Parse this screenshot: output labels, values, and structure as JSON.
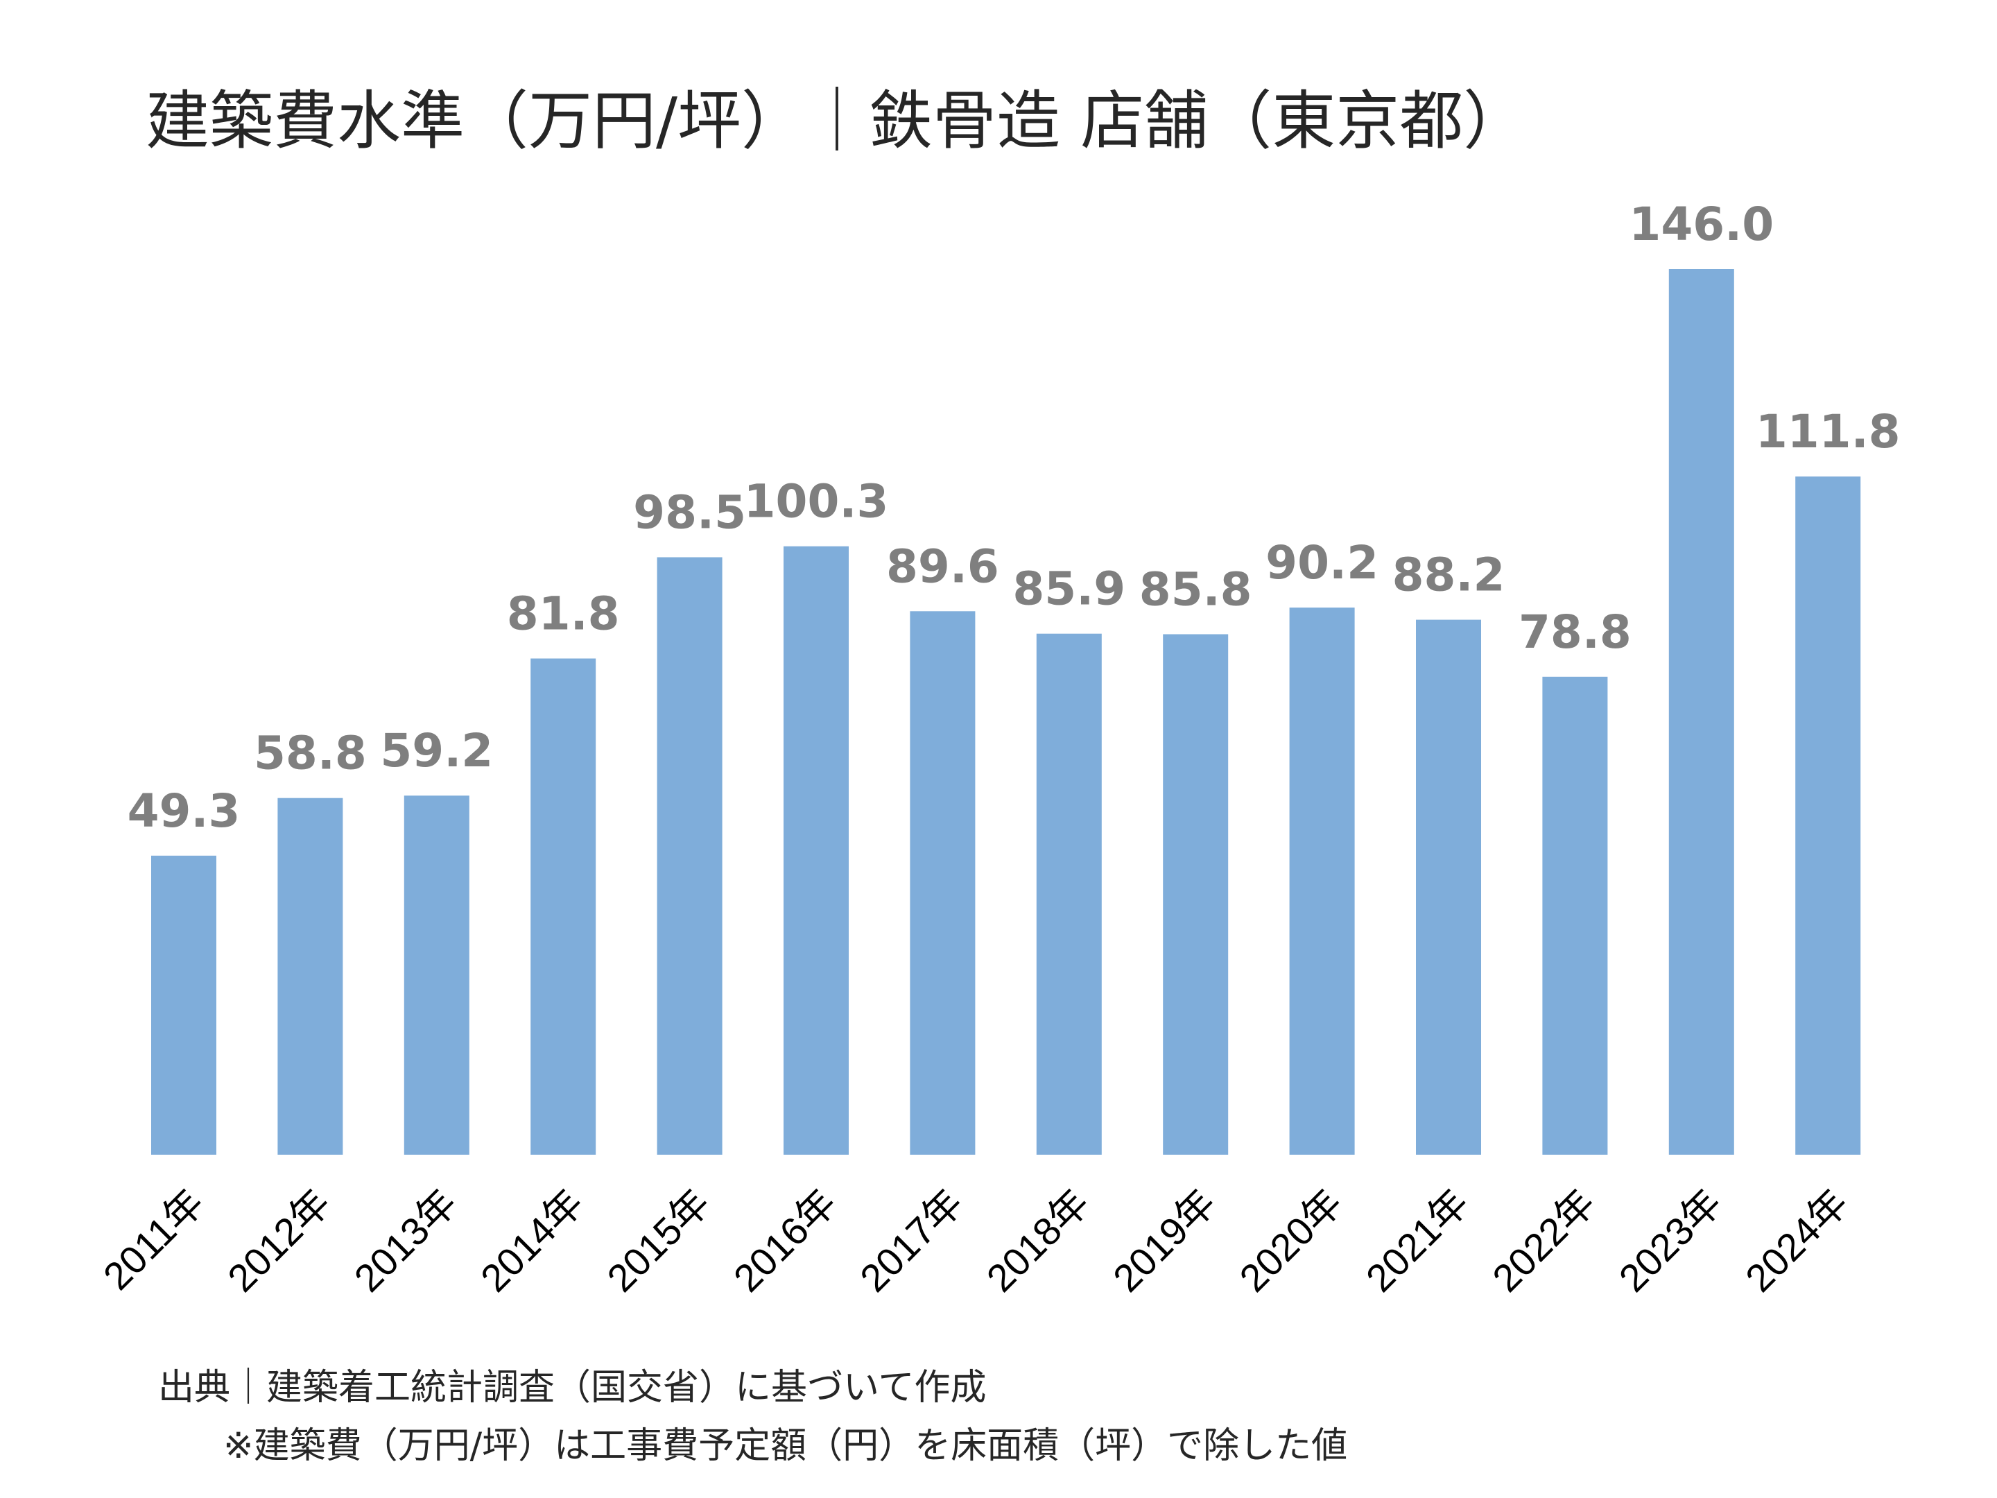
{
  "chart_data": {
    "type": "bar",
    "title": "建築費水準（万円/坪）｜鉄骨造 店舗（東京都）",
    "categories": [
      "2011年",
      "2012年",
      "2013年",
      "2014年",
      "2015年",
      "2016年",
      "2017年",
      "2018年",
      "2019年",
      "2020年",
      "2021年",
      "2022年",
      "2023年",
      "2024年"
    ],
    "values": [
      49.3,
      58.8,
      59.2,
      81.8,
      98.5,
      100.3,
      89.6,
      85.9,
      85.8,
      90.2,
      88.2,
      78.8,
      146.0,
      111.8
    ],
    "value_labels": [
      "49.3",
      "58.8",
      "59.2",
      "81.8",
      "98.5",
      "100.3",
      "89.6",
      "85.9",
      "85.8",
      "90.2",
      "88.2",
      "78.8",
      "146.0",
      "111.8"
    ],
    "ylim": [
      0,
      146.0
    ],
    "grid": false,
    "legend": "none",
    "colors": {
      "bar": "#7fadda",
      "value_label": "#7f7f7f",
      "tick_label": "#000000",
      "title": "#262626"
    }
  },
  "notes": {
    "source": "出典｜建築着工統計調査（国交省）に基づいて作成",
    "formula": "※建築費（万円/坪）は工事費予定額（円）を床面積（坪）で除した値"
  }
}
